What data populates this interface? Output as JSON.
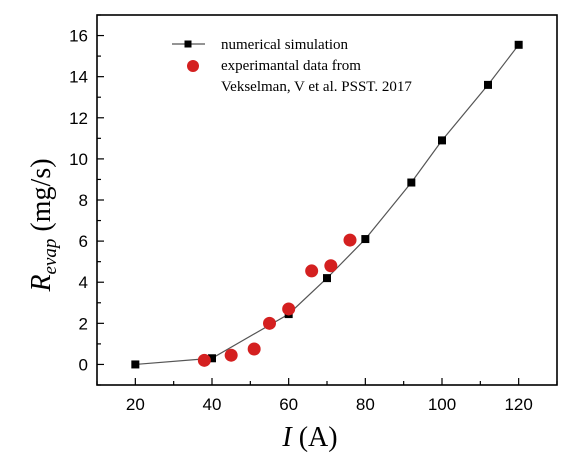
{
  "chart_data": {
    "type": "scatter",
    "title": "",
    "xlabel": {
      "symbol": "I",
      "unit": " (A)"
    },
    "ylabel": {
      "symbol": "R",
      "subscript": "evap",
      "unit": " (mg/s)"
    },
    "xlim": [
      10,
      130
    ],
    "ylim": [
      -1,
      17
    ],
    "x_ticks": [
      20,
      40,
      60,
      80,
      100,
      120
    ],
    "y_ticks": [
      0,
      2,
      4,
      6,
      8,
      10,
      12,
      14,
      16
    ],
    "grid": false,
    "legend_position": "top-left",
    "series": [
      {
        "name": "numerical simulation",
        "marker": "square",
        "line": true,
        "color": "#000000",
        "line_color": "#555555",
        "points": [
          {
            "x": 20,
            "y": 0.0
          },
          {
            "x": 40,
            "y": 0.3
          },
          {
            "x": 60,
            "y": 2.45
          },
          {
            "x": 70,
            "y": 4.2
          },
          {
            "x": 80,
            "y": 6.1
          },
          {
            "x": 92,
            "y": 8.85
          },
          {
            "x": 100,
            "y": 10.9
          },
          {
            "x": 112,
            "y": 13.6
          },
          {
            "x": 120,
            "y": 15.55
          }
        ]
      },
      {
        "name": "experimantal data from",
        "name_line2": "Vekselman, V et al. PSST. 2017",
        "marker": "circle",
        "line": false,
        "color": "#d42020",
        "points": [
          {
            "x": 38,
            "y": 0.2
          },
          {
            "x": 45,
            "y": 0.45
          },
          {
            "x": 51,
            "y": 0.75
          },
          {
            "x": 55,
            "y": 2.0
          },
          {
            "x": 60,
            "y": 2.7
          },
          {
            "x": 66,
            "y": 4.55
          },
          {
            "x": 71,
            "y": 4.8
          },
          {
            "x": 76,
            "y": 6.05
          }
        ]
      }
    ]
  }
}
